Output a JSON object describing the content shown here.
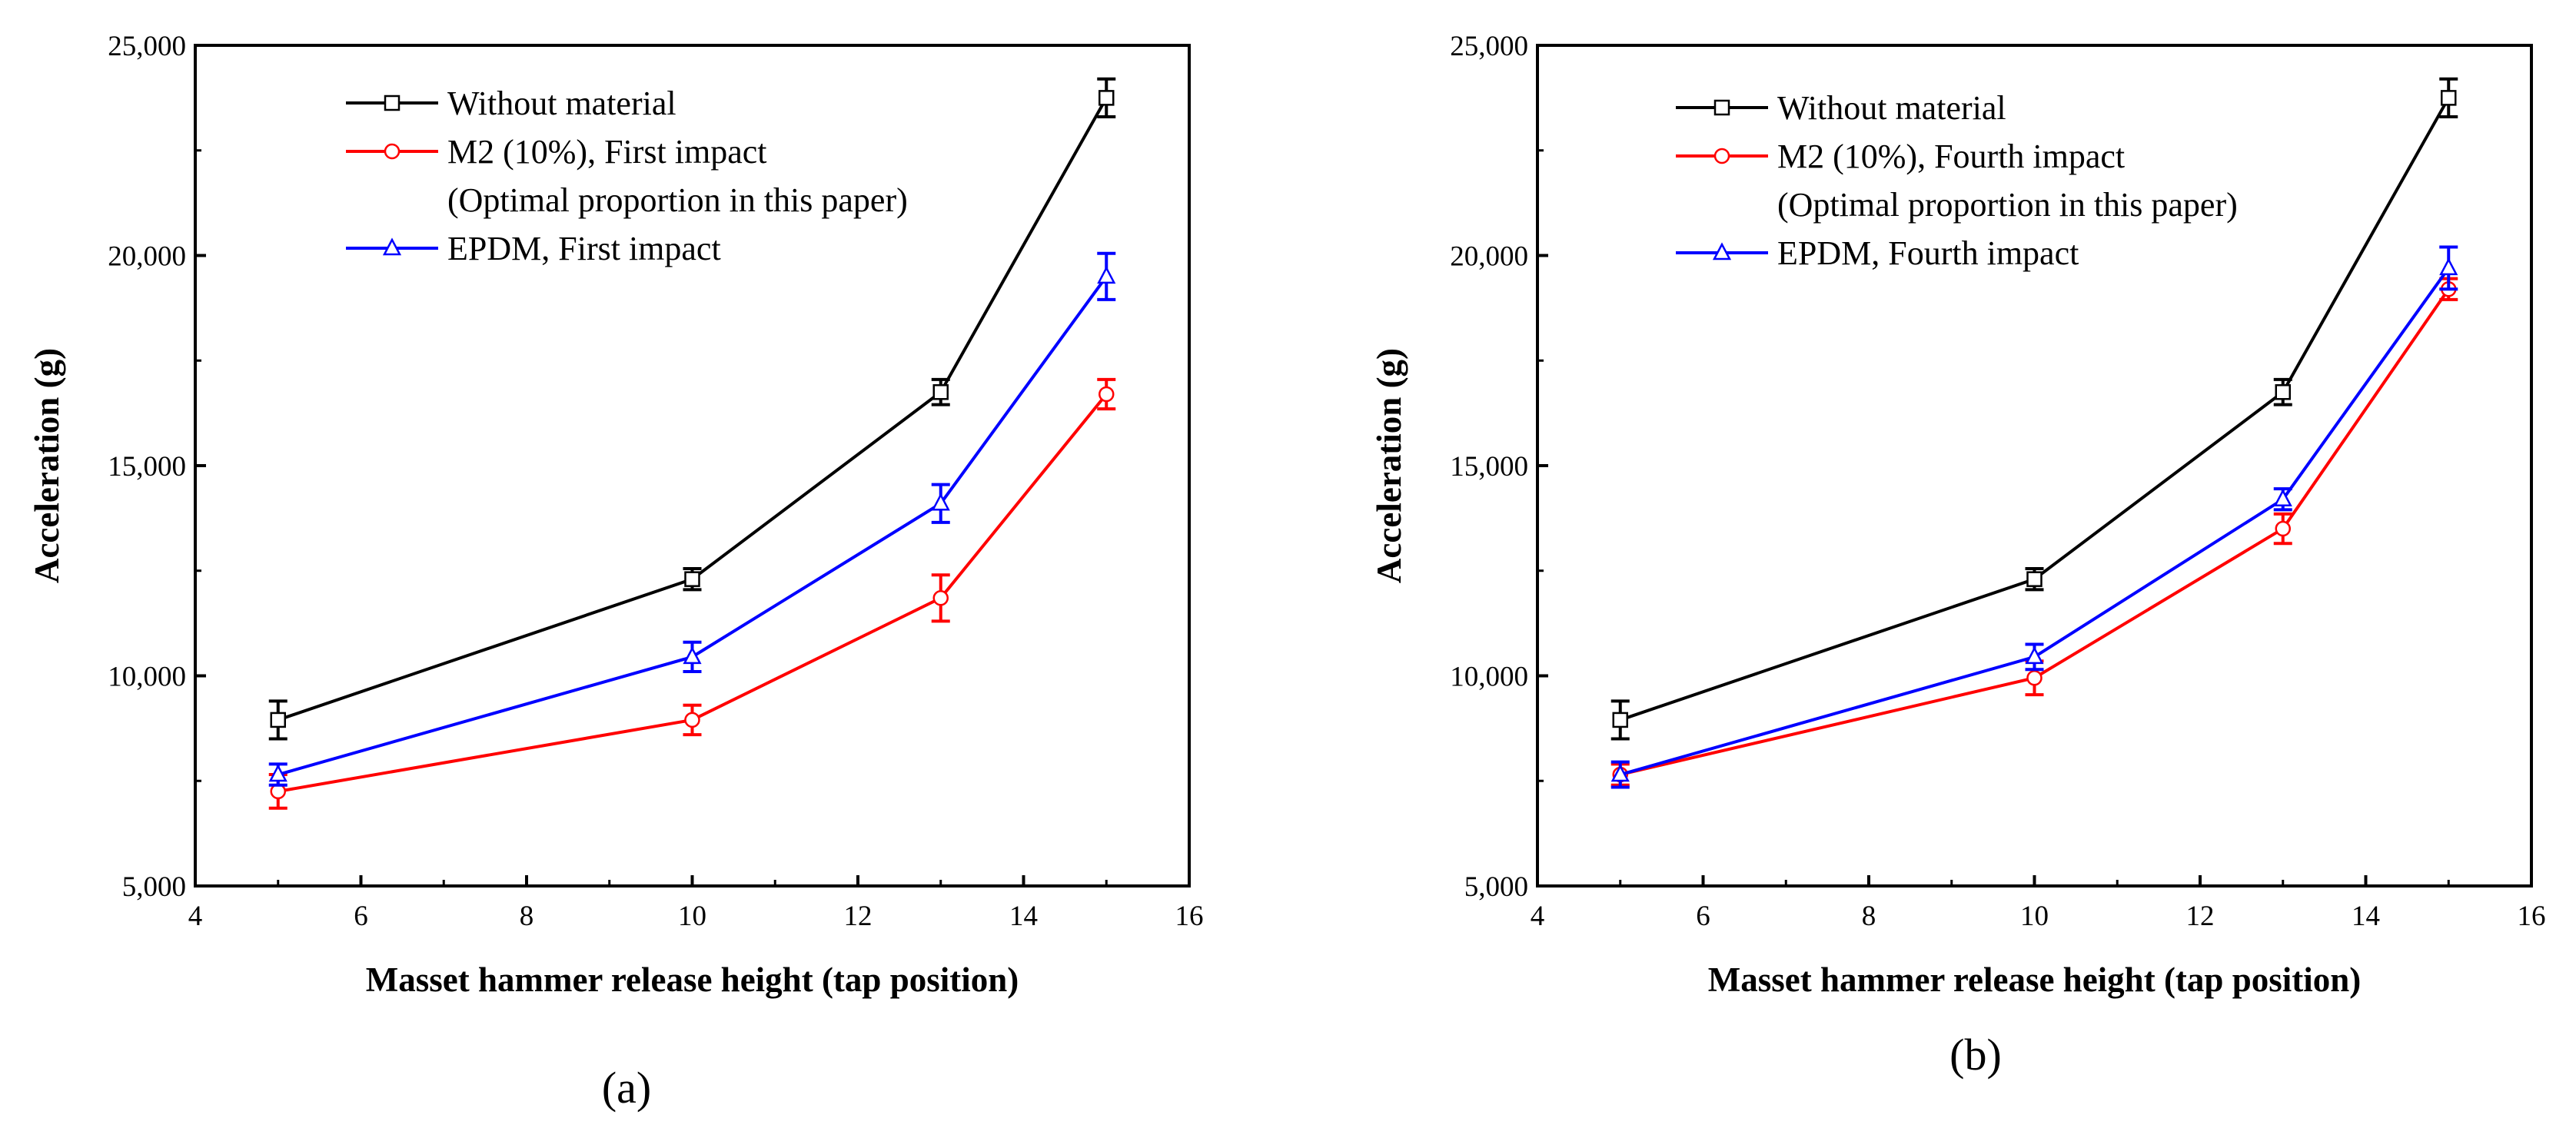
{
  "chart_data": [
    {
      "type": "line",
      "panel_label": "(a)",
      "xlabel": "Masset hammer release height (tap position)",
      "ylabel": "Acceleration (g)",
      "xlim": [
        4,
        16
      ],
      "ylim": [
        5000,
        25000
      ],
      "xticks": [
        4,
        6,
        8,
        10,
        12,
        14,
        16
      ],
      "yticks": [
        5000,
        10000,
        15000,
        20000,
        25000
      ],
      "ytick_labels": [
        "5,000",
        "10,000",
        "15,000",
        "20,000",
        "25,000"
      ],
      "legend_position": "top-center",
      "series": [
        {
          "name": "Without material",
          "extra_line": "",
          "color": "#000000",
          "marker": "square",
          "x": [
            5,
            10,
            13,
            15
          ],
          "y": [
            8950,
            12300,
            16750,
            23750
          ],
          "err": [
            450,
            250,
            300,
            450
          ]
        },
        {
          "name": "M2 (10%), First impact",
          "extra_line": "(Optimal proportion in this paper)",
          "color": "#ff0000",
          "marker": "circle",
          "x": [
            5,
            10,
            13,
            15
          ],
          "y": [
            7250,
            8950,
            11850,
            16700
          ],
          "err": [
            400,
            350,
            550,
            350
          ]
        },
        {
          "name": "EPDM, First impact",
          "extra_line": "",
          "color": "#0000ff",
          "marker": "triangle",
          "x": [
            5,
            10,
            13,
            15
          ],
          "y": [
            7650,
            10450,
            14100,
            19500
          ],
          "err": [
            250,
            350,
            450,
            550
          ]
        }
      ]
    },
    {
      "type": "line",
      "panel_label": "(b)",
      "xlabel": "Masset hammer release height (tap position)",
      "ylabel": "Acceleration (g)",
      "xlim": [
        4,
        16
      ],
      "ylim": [
        5000,
        25000
      ],
      "xticks": [
        4,
        6,
        8,
        10,
        12,
        14,
        16
      ],
      "yticks": [
        5000,
        10000,
        15000,
        20000,
        25000
      ],
      "ytick_labels": [
        "5,000",
        "10,000",
        "15,000",
        "20,000",
        "25,000"
      ],
      "legend_position": "top-center",
      "series": [
        {
          "name": "Without material",
          "extra_line": "",
          "color": "#000000",
          "marker": "square",
          "x": [
            5,
            10,
            13,
            15
          ],
          "y": [
            8950,
            12300,
            16750,
            23750
          ],
          "err": [
            450,
            250,
            300,
            450
          ]
        },
        {
          "name": "M2 (10%), Fourth impact",
          "extra_line": "(Optimal proportion in this paper)",
          "color": "#ff0000",
          "marker": "circle",
          "x": [
            5,
            10,
            13,
            15
          ],
          "y": [
            7650,
            9950,
            13500,
            19200
          ],
          "err": [
            250,
            400,
            350,
            250
          ]
        },
        {
          "name": "EPDM, Fourth impact",
          "extra_line": "",
          "color": "#0000ff",
          "marker": "triangle",
          "x": [
            5,
            10,
            13,
            15
          ],
          "y": [
            7650,
            10450,
            14200,
            19700
          ],
          "err": [
            300,
            300,
            250,
            500
          ]
        }
      ]
    }
  ]
}
